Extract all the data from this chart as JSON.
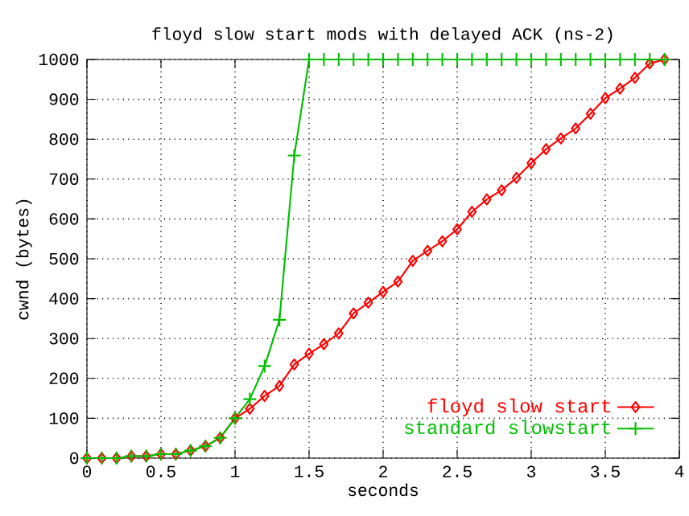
{
  "chart_data": {
    "type": "line",
    "title": "floyd slow start mods with delayed ACK (ns-2)",
    "xlabel": "seconds",
    "ylabel": "cwnd (bytes)",
    "xlim": [
      0,
      4
    ],
    "ylim": [
      0,
      1000
    ],
    "xticks": [
      0,
      0.5,
      1,
      1.5,
      2,
      2.5,
      3,
      3.5,
      4
    ],
    "yticks": [
      0,
      100,
      200,
      300,
      400,
      500,
      600,
      700,
      800,
      900,
      1000
    ],
    "grid": true,
    "legend": "bottom right",
    "line_style": "solid",
    "series": [
      {
        "name": "floyd slow start",
        "color": "#ff0000",
        "marker": "diamond",
        "x": [
          0,
          0.1,
          0.2,
          0.3,
          0.4,
          0.5,
          0.6,
          0.7,
          0.8,
          0.9,
          1.0,
          1.1,
          1.2,
          1.3,
          1.4,
          1.5,
          1.6,
          1.7,
          1.8,
          1.9,
          2.0,
          2.1,
          2.2,
          2.3,
          2.4,
          2.5,
          2.6,
          2.7,
          2.8,
          2.9,
          3.0,
          3.1,
          3.2,
          3.3,
          3.4,
          3.5,
          3.6,
          3.7,
          3.8,
          3.9
        ],
        "values": [
          0,
          0,
          0,
          5,
          5,
          10,
          10,
          19,
          30,
          51,
          100,
          124,
          156,
          181,
          235,
          262,
          286,
          313,
          363,
          390,
          417,
          443,
          495,
          520,
          544,
          574,
          618,
          649,
          672,
          703,
          740,
          775,
          802,
          827,
          864,
          903,
          927,
          954,
          990,
          1000
        ]
      },
      {
        "name": "standard slowstart",
        "color": "#00c000",
        "marker": "cross",
        "x": [
          0,
          0.1,
          0.2,
          0.3,
          0.4,
          0.5,
          0.6,
          0.7,
          0.8,
          0.9,
          1.0,
          1.1,
          1.2,
          1.3,
          1.4,
          1.5,
          1.6,
          1.7,
          1.8,
          1.9,
          2.0,
          2.1,
          2.2,
          2.3,
          2.4,
          2.5,
          2.6,
          2.7,
          2.8,
          2.9,
          3.0,
          3.1,
          3.2,
          3.3,
          3.4,
          3.5,
          3.6,
          3.7,
          3.8,
          3.9
        ],
        "values": [
          0,
          0,
          0,
          5,
          5,
          10,
          10,
          19,
          30,
          51,
          100,
          148,
          231,
          347,
          759,
          1000,
          1000,
          1000,
          1000,
          1000,
          1000,
          1000,
          1000,
          1000,
          1000,
          1000,
          1000,
          1000,
          1000,
          1000,
          1000,
          1000,
          1000,
          1000,
          1000,
          1000,
          1000,
          1000,
          1000,
          1000
        ]
      }
    ]
  }
}
